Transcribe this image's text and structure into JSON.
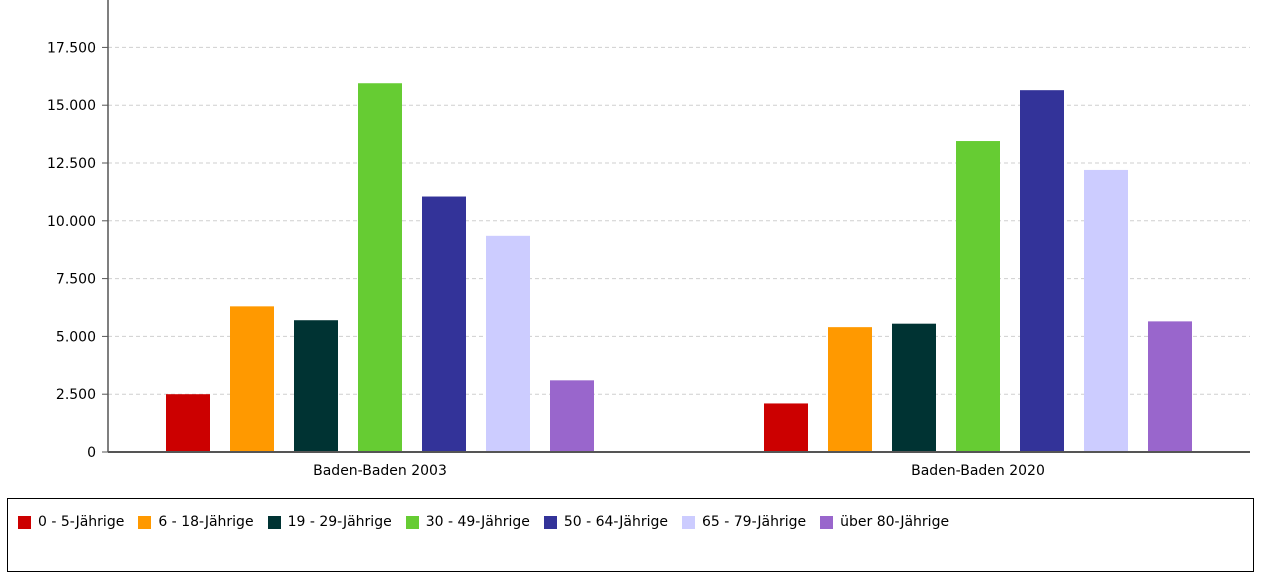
{
  "chart_data": {
    "type": "bar",
    "categories": [
      "Baden-Baden 2003",
      "Baden-Baden 2020"
    ],
    "series": [
      {
        "name": "0 - 5-Jährige",
        "color": "#cc0000",
        "values": [
          2500,
          2100
        ]
      },
      {
        "name": "6 - 18-Jährige",
        "color": "#ff9900",
        "values": [
          6300,
          5400
        ]
      },
      {
        "name": "19 - 29-Jährige",
        "color": "#003333",
        "values": [
          5700,
          5550
        ]
      },
      {
        "name": "30 - 49-Jährige",
        "color": "#66cc33",
        "values": [
          15950,
          13450
        ]
      },
      {
        "name": "50 - 64-Jährige",
        "color": "#333399",
        "values": [
          11050,
          15650
        ]
      },
      {
        "name": "65 - 79-Jährige",
        "color": "#ccccff",
        "values": [
          9350,
          12200
        ]
      },
      {
        "name": "über 80-Jährige",
        "color": "#9966cc",
        "values": [
          3100,
          5650
        ]
      }
    ],
    "y_ticks": [
      "0",
      "2.500",
      "5.000",
      "7.500",
      "10.000",
      "12.500",
      "15.000",
      "17.500"
    ],
    "y_tick_values": [
      0,
      2500,
      5000,
      7500,
      10000,
      12500,
      15000,
      17500
    ],
    "ylim": [
      0,
      19500
    ],
    "grid": true,
    "legend_position": "bottom"
  }
}
